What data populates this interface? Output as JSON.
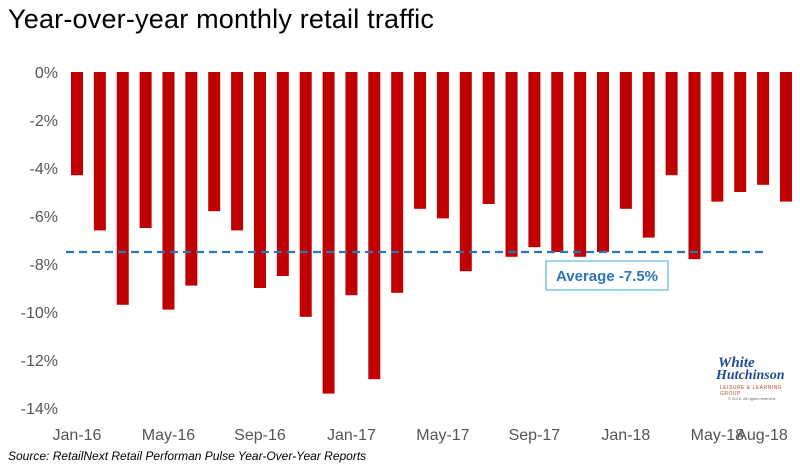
{
  "title": "Year-over-year monthly retail traffic",
  "source": "Source: RetailNext Retail Performan Pulse Year-Over-Year Reports",
  "logo": {
    "line1": "White",
    "line2": "Hutchinson",
    "sub": "LEISURE & LEARNING GROUP",
    "copyright": "© 2018. All rights reserved."
  },
  "colors": {
    "bar": "#c00000",
    "average_line": "#2e75b6",
    "average_box_border": "#5fb8d9"
  },
  "chart_data": {
    "type": "bar",
    "x": [
      "Jan-16",
      "Feb-16",
      "Mar-16",
      "Apr-16",
      "May-16",
      "Jun-16",
      "Jul-16",
      "Aug-16",
      "Sep-16",
      "Oct-16",
      "Nov-16",
      "Dec-16",
      "Jan-17",
      "Feb-17",
      "Mar-17",
      "Apr-17",
      "May-17",
      "Jun-17",
      "Jul-17",
      "Aug-17",
      "Sep-17",
      "Oct-17",
      "Nov-17",
      "Dec-17",
      "Jan-18",
      "Feb-18",
      "Mar-18",
      "Apr-18",
      "May-18",
      "Jun-18",
      "Jul-18",
      "Aug-18"
    ],
    "values": [
      -4.3,
      -6.6,
      -9.7,
      -6.5,
      -9.9,
      -8.9,
      -5.8,
      -6.6,
      -9.0,
      -8.5,
      -10.2,
      -13.4,
      -9.3,
      -12.8,
      -9.2,
      -5.7,
      -6.1,
      -8.3,
      -5.5,
      -7.7,
      -7.3,
      -7.5,
      -7.7,
      -7.5,
      -5.7,
      -6.9,
      -4.3,
      -7.8,
      -5.4,
      -5.0,
      -4.7,
      -5.4
    ],
    "x_tick_labels": [
      "Jan-16",
      "May-16",
      "Sep-16",
      "Jan-17",
      "May-17",
      "Sep-17",
      "Jan-18",
      "May-18",
      "Aug-18"
    ],
    "y_tick_labels": [
      "0%",
      "-2%",
      "-4%",
      "-6%",
      "-8%",
      "-10%",
      "-12%",
      "-14%"
    ],
    "ylim": [
      -14,
      0
    ],
    "grid": false,
    "average": {
      "value": -7.5,
      "label": "Average -7.5%"
    }
  }
}
